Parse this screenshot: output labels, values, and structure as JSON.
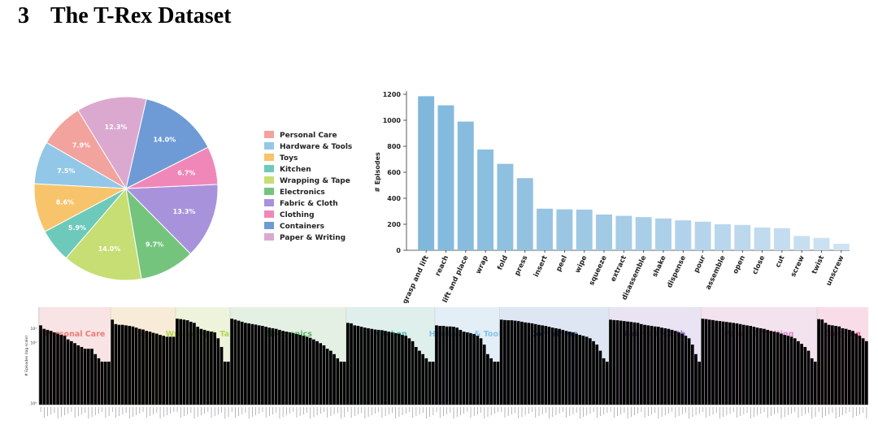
{
  "section": {
    "number": "3",
    "title": "The T-Rex Dataset"
  },
  "chart_data": [
    {
      "type": "pie",
      "title": "",
      "legend_position": "right",
      "slices": [
        {
          "label": "Personal Care",
          "value": 7.9,
          "label_text": "7.9%",
          "color": "#f2a39d"
        },
        {
          "label": "Hardware & Tools",
          "value": 7.5,
          "label_text": "7.5%",
          "color": "#93c7e8"
        },
        {
          "label": "Toys",
          "value": 8.6,
          "label_text": "8.6%",
          "color": "#f7c46b"
        },
        {
          "label": "Kitchen",
          "value": 5.9,
          "label_text": "5.9%",
          "color": "#6dcabb"
        },
        {
          "label": "Wrapping & Tape",
          "value": 14.0,
          "label_text": "14.0%",
          "color": "#c6de73"
        },
        {
          "label": "Electronics",
          "value": 9.7,
          "label_text": "9.7%",
          "color": "#75c47e"
        },
        {
          "label": "Fabric & Cloth",
          "value": 13.3,
          "label_text": "13.3%",
          "color": "#a892dc"
        },
        {
          "label": "Clothing",
          "value": 6.7,
          "label_text": "6.7%",
          "color": "#f087b9"
        },
        {
          "label": "Containers",
          "value": 14.0,
          "label_text": "14.0%",
          "color": "#6e9bd6"
        },
        {
          "label": "Paper & Writing",
          "value": 12.3,
          "label_text": "12.3%",
          "color": "#dba9d0"
        }
      ]
    },
    {
      "type": "bar",
      "title": "",
      "xlabel": "",
      "ylabel": "# Episodes",
      "ylim": [
        0,
        1200
      ],
      "yticks": [
        0,
        200,
        400,
        600,
        800,
        1000,
        1200
      ],
      "categories": [
        "grasp and lift",
        "reach",
        "lift and place",
        "wrap",
        "fold",
        "press",
        "insert",
        "peel",
        "wipe",
        "squeeze",
        "extract",
        "disassemble",
        "shake",
        "dispense",
        "pour",
        "assemble",
        "open",
        "close",
        "cut",
        "screw",
        "twist",
        "unscrew"
      ],
      "values": [
        1185,
        1115,
        990,
        775,
        665,
        555,
        320,
        315,
        313,
        275,
        265,
        255,
        245,
        230,
        220,
        200,
        195,
        175,
        170,
        110,
        95,
        50
      ],
      "color_start": "#80b8dc",
      "color_end": "#cfe2f2"
    },
    {
      "type": "bar",
      "title": "",
      "ylabel": "# Episodes (log scale)",
      "yscale": "log",
      "yticks": [
        "10¹",
        "10¹",
        "10⁰"
      ],
      "groups": [
        {
          "name": "Personal Care",
          "color": "#ee7d78",
          "bg": "#f8e4e4",
          "values": [
            70,
            58,
            55,
            52,
            48,
            45,
            42,
            40,
            33,
            30,
            27,
            24,
            22,
            20,
            20,
            20,
            15,
            12,
            10,
            10,
            10
          ]
        },
        {
          "name": "Toys",
          "color": "#f5b547",
          "bg": "#f8ecd8",
          "values": [
            95,
            75,
            72,
            72,
            70,
            68,
            66,
            62,
            58,
            56,
            52,
            50,
            47,
            45,
            42,
            40,
            38,
            38,
            38
          ]
        },
        {
          "name": "Wrapping & Tape",
          "color": "#b4d652",
          "bg": "#eef3dc",
          "values": [
            100,
            98,
            95,
            92,
            85,
            80,
            65,
            58,
            55,
            52,
            50,
            48,
            35,
            22,
            10,
            10
          ]
        },
        {
          "name": "Electronics",
          "color": "#58b865",
          "bg": "#e4f0e4",
          "values": [
            100,
            95,
            90,
            85,
            80,
            78,
            75,
            73,
            70,
            68,
            65,
            62,
            60,
            58,
            55,
            52,
            50,
            48,
            46,
            44,
            42,
            40,
            38,
            36,
            33,
            30,
            27,
            24,
            20,
            18,
            15,
            12,
            10,
            10
          ]
        },
        {
          "name": "Kitchen",
          "color": "#4ec2b0",
          "bg": "#dff0ec",
          "values": [
            80,
            78,
            70,
            68,
            65,
            62,
            60,
            58,
            56,
            55,
            54,
            52,
            50,
            48,
            46,
            45,
            42,
            40,
            35,
            30,
            22,
            18,
            15,
            12,
            10,
            10
          ]
        },
        {
          "name": "Hardware & Tools",
          "color": "#86c2e8",
          "bg": "#e3eef6",
          "values": [
            70,
            68,
            68,
            66,
            66,
            65,
            62,
            55,
            50,
            48,
            46,
            44,
            40,
            35,
            25,
            15,
            12,
            10,
            10
          ]
        },
        {
          "name": "Containers",
          "color": "#4e7fcf",
          "bg": "#dfe6f3",
          "values": [
            95,
            93,
            92,
            92,
            90,
            88,
            85,
            82,
            80,
            78,
            75,
            72,
            70,
            68,
            65,
            62,
            60,
            58,
            55,
            52,
            50,
            48,
            45,
            42,
            40,
            38,
            35,
            30,
            25,
            18,
            12,
            10
          ]
        },
        {
          "name": "Fabric & Cloth",
          "color": "#9d7ed7",
          "bg": "#e9e3f3",
          "values": [
            95,
            93,
            92,
            90,
            88,
            86,
            84,
            82,
            80,
            75,
            72,
            70,
            68,
            66,
            65,
            62,
            60,
            58,
            55,
            52,
            48,
            45,
            40,
            35,
            25,
            15,
            10
          ]
        },
        {
          "name": "Paper & Writing",
          "color": "#d98cc6",
          "bg": "#f3e3ee",
          "values": [
            100,
            98,
            95,
            93,
            90,
            88,
            86,
            84,
            82,
            80,
            78,
            75,
            72,
            70,
            68,
            65,
            62,
            60,
            58,
            55,
            52,
            50,
            48,
            45,
            42,
            40,
            38,
            35,
            30,
            26,
            22,
            18,
            12,
            10
          ]
        },
        {
          "name": "Clothing",
          "color": "#f067a8",
          "bg": "#f8dde8",
          "values": [
            98,
            96,
            80,
            72,
            70,
            68,
            66,
            60,
            58,
            55,
            52,
            45,
            40,
            35,
            30
          ]
        }
      ]
    }
  ]
}
